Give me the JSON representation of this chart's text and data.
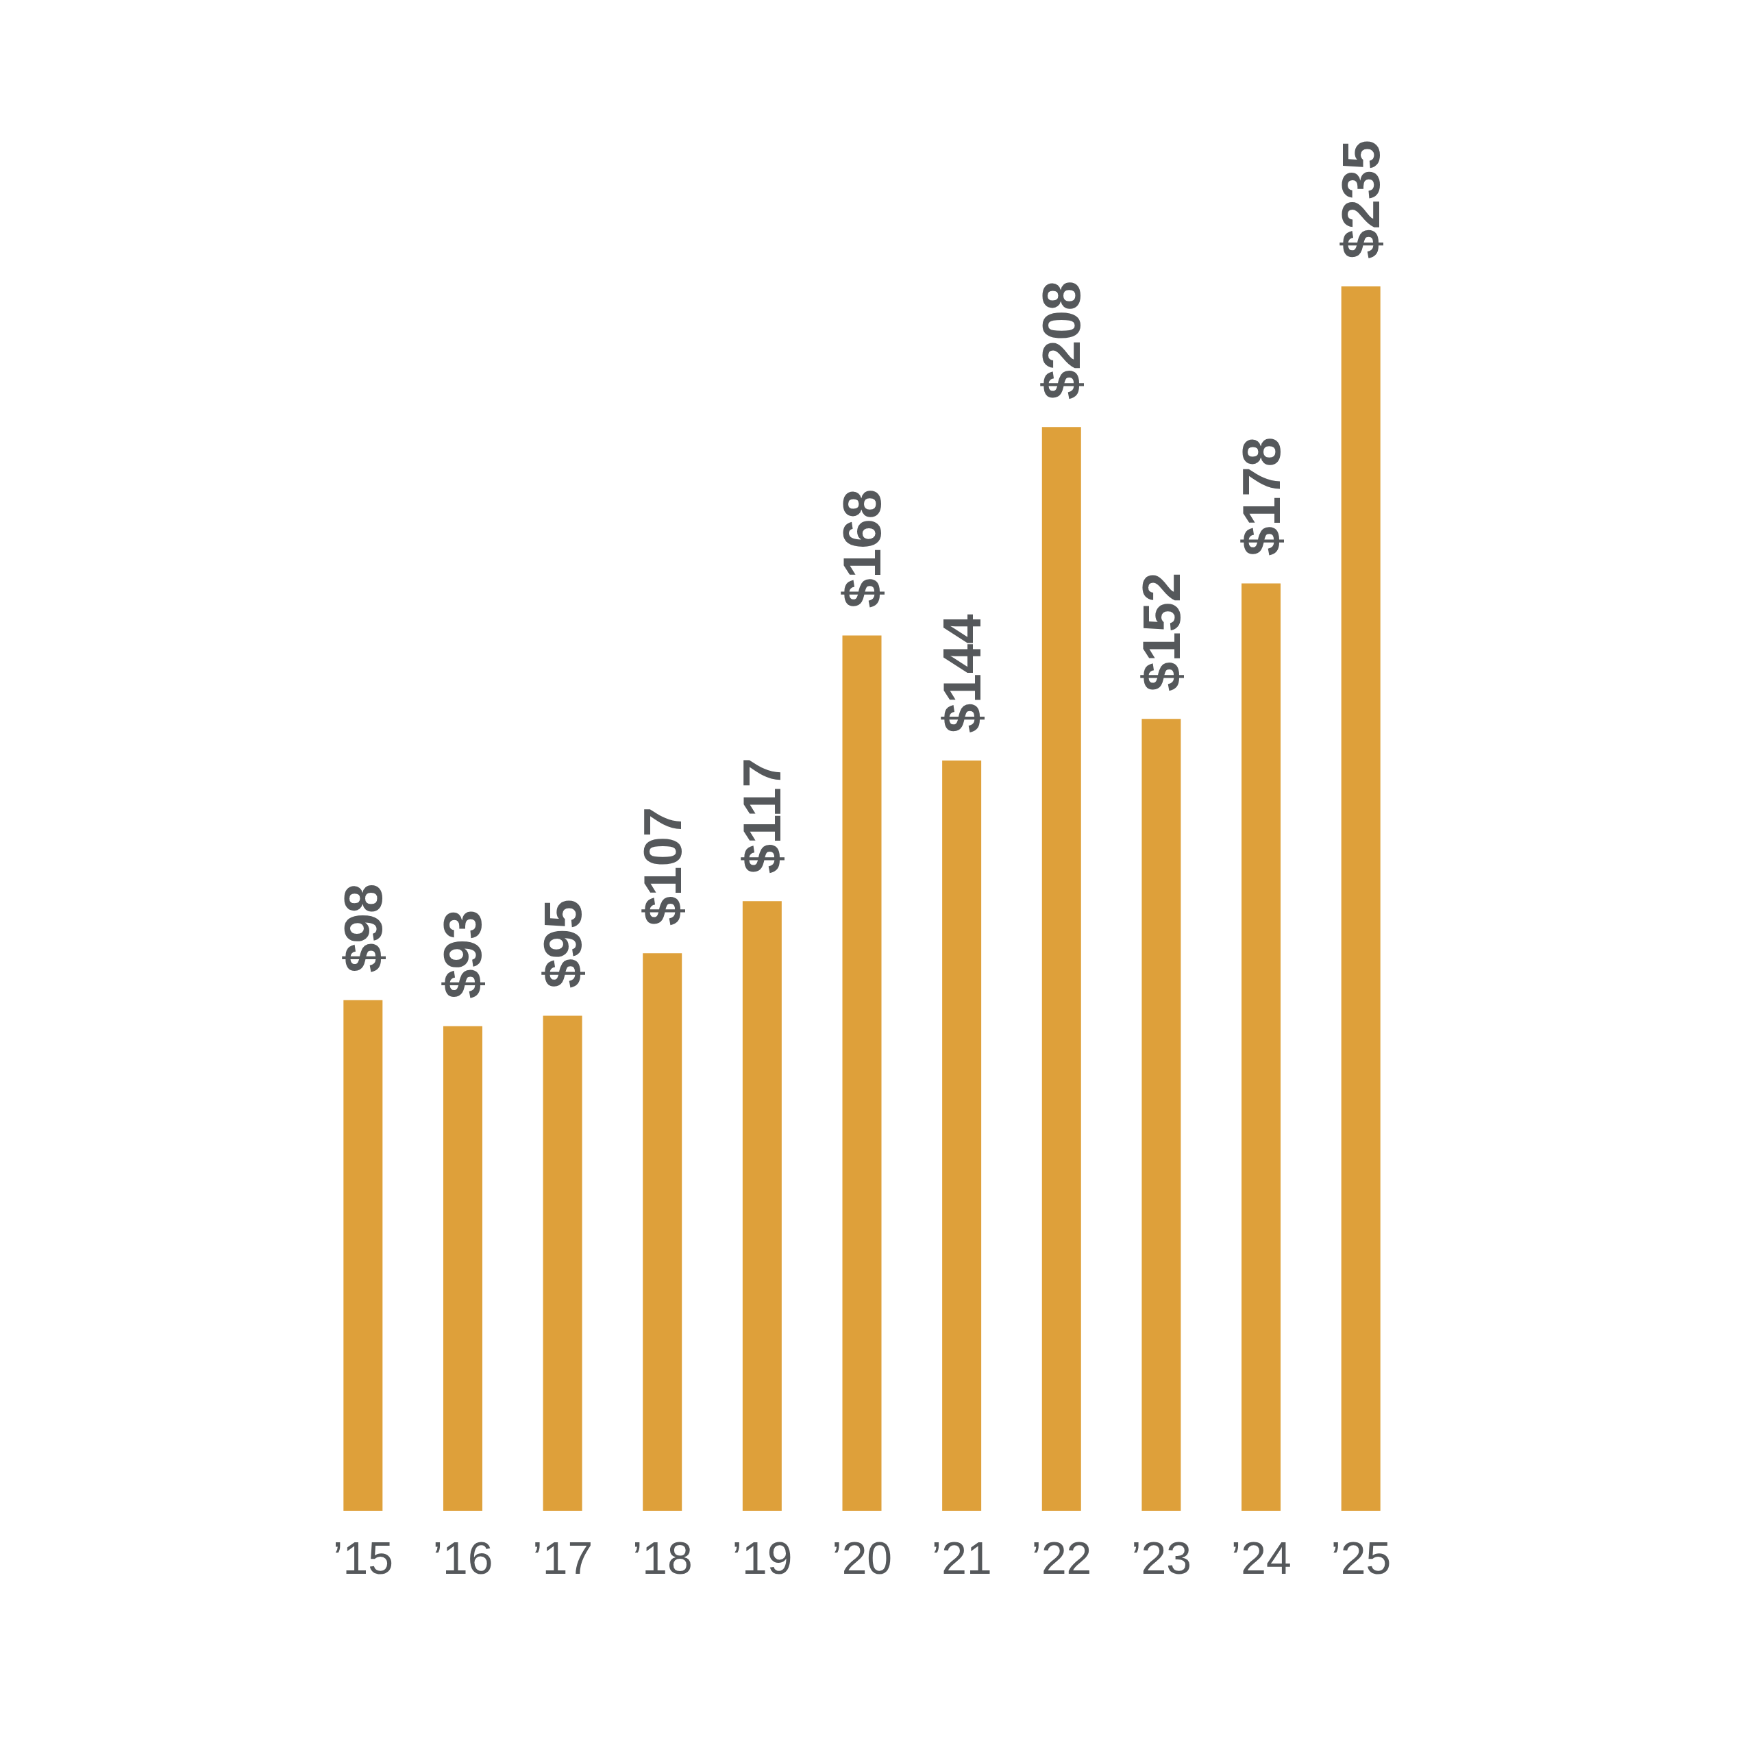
{
  "chart_data": {
    "type": "bar",
    "categories": [
      "’15",
      "’16",
      "’17",
      "’18",
      "’19",
      "’20",
      "’21",
      "’22",
      "’23",
      "’24",
      "’25"
    ],
    "values": [
      98,
      93,
      95,
      107,
      117,
      168,
      144,
      208,
      152,
      178,
      235
    ],
    "value_labels": [
      "$98",
      "$93",
      "$95",
      "$107",
      "$117",
      "$168",
      "$144",
      "$208",
      "$152",
      "$178",
      "$235"
    ],
    "color": "#dea03a"
  }
}
